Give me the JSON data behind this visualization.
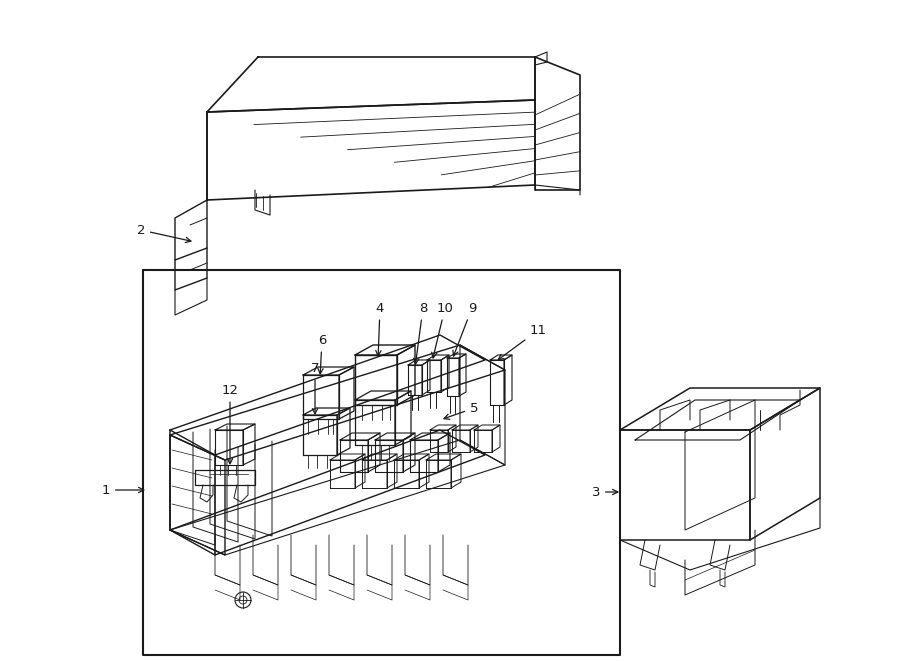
{
  "bg_color": "#ffffff",
  "line_color": "#1a1a1a",
  "fig_width": 9.0,
  "fig_height": 6.61,
  "dpi": 100,
  "label_fs": 9,
  "arrow_lw": 0.8
}
